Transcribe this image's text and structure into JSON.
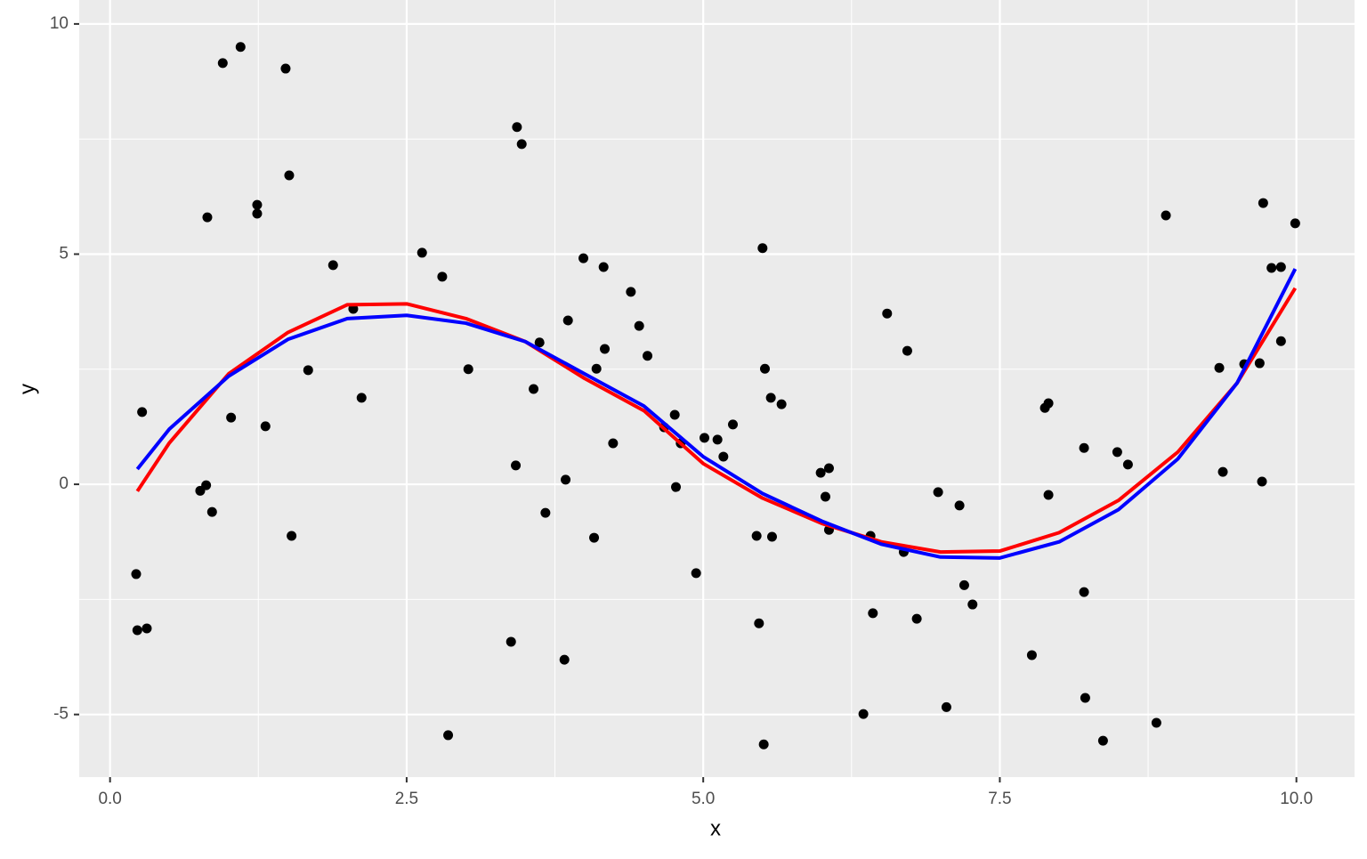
{
  "chart_data": {
    "type": "scatter",
    "xlabel": "x",
    "ylabel": "y",
    "xlim": [
      -0.26,
      10.49
    ],
    "ylim": [
      -6.36,
      10.52
    ],
    "xticks": [
      {
        "value": 0,
        "label": "0.0"
      },
      {
        "value": 2.5,
        "label": "2.5"
      },
      {
        "value": 5,
        "label": "5.0"
      },
      {
        "value": 7.5,
        "label": "7.5"
      },
      {
        "value": 10,
        "label": "10.0"
      }
    ],
    "yticks": [
      -5,
      0,
      5,
      10
    ],
    "grid": true,
    "points": {
      "color": "#000000",
      "x": [
        0.22,
        0.23,
        0.31,
        0.27,
        0.76,
        0.81,
        0.86,
        0.82,
        0.95,
        1.02,
        1.1,
        1.24,
        1.24,
        1.31,
        1.48,
        1.51,
        1.53,
        1.67,
        1.88,
        2.05,
        2.12,
        2.63,
        2.8,
        2.85,
        3.02,
        3.38,
        3.42,
        3.43,
        3.47,
        3.57,
        3.62,
        3.67,
        3.83,
        3.84,
        3.86,
        3.99,
        4.08,
        4.1,
        4.16,
        4.17,
        4.24,
        4.39,
        4.46,
        4.53,
        4.67,
        4.76,
        4.77,
        4.81,
        4.94,
        5.01,
        5.12,
        5.17,
        5.25,
        5.45,
        5.47,
        5.5,
        5.51,
        5.52,
        5.57,
        5.58,
        5.66,
        5.99,
        6.03,
        6.06,
        6.06,
        6.35,
        6.41,
        6.43,
        6.55,
        6.69,
        6.72,
        6.8,
        6.98,
        7.05,
        7.16,
        7.2,
        7.27,
        7.77,
        7.88,
        7.91,
        7.91,
        8.21,
        8.21,
        8.22,
        8.37,
        8.49,
        8.58,
        8.82,
        8.9,
        9.35,
        9.38,
        9.56,
        9.69,
        9.71,
        9.72,
        9.79,
        9.87,
        9.87,
        9.99
      ],
      "y": [
        -1.95,
        -3.17,
        -3.13,
        1.57,
        -0.14,
        -0.02,
        -0.6,
        5.8,
        9.15,
        1.45,
        9.5,
        6.07,
        5.88,
        1.26,
        9.03,
        6.71,
        -1.12,
        2.48,
        4.76,
        3.81,
        1.88,
        5.03,
        4.51,
        -5.45,
        2.5,
        -3.42,
        0.41,
        7.76,
        7.39,
        2.07,
        3.08,
        -0.62,
        -3.81,
        0.1,
        3.56,
        4.91,
        -1.16,
        2.51,
        4.72,
        2.94,
        0.89,
        4.18,
        3.44,
        2.79,
        1.24,
        1.51,
        -0.06,
        0.89,
        -1.93,
        1.01,
        0.97,
        0.6,
        1.3,
        -1.12,
        -3.02,
        5.13,
        -5.65,
        2.51,
        1.88,
        -1.14,
        1.74,
        0.25,
        -0.27,
        0.35,
        -0.99,
        -4.99,
        -1.12,
        -2.8,
        3.71,
        -1.47,
        2.9,
        -2.92,
        -0.17,
        -4.84,
        -0.46,
        -2.19,
        -2.61,
        -3.71,
        1.66,
        1.76,
        -0.23,
        0.79,
        -2.34,
        -4.64,
        -5.57,
        0.7,
        0.43,
        -5.18,
        5.84,
        2.53,
        0.27,
        2.61,
        2.63,
        0.06,
        6.11,
        4.7,
        4.72,
        3.11,
        5.67
      ]
    },
    "lines": [
      {
        "type": "line",
        "color": "#ff0000",
        "x": [
          0.23,
          0.5,
          1,
          1.5,
          2,
          2.5,
          3,
          3.5,
          4,
          4.5,
          5,
          5.5,
          6,
          6.5,
          7,
          7.5,
          8,
          8.5,
          9,
          9.5,
          9.99
        ],
        "values": [
          -0.15,
          0.9,
          2.4,
          3.3,
          3.9,
          3.92,
          3.6,
          3.1,
          2.3,
          1.6,
          0.45,
          -0.3,
          -0.85,
          -1.25,
          -1.47,
          -1.45,
          -1.05,
          -0.35,
          0.7,
          2.2,
          4.26
        ]
      },
      {
        "type": "line",
        "color": "#0000ff",
        "x": [
          0.23,
          0.5,
          1,
          1.5,
          2,
          2.5,
          3,
          3.5,
          4,
          4.5,
          5,
          5.5,
          6,
          6.5,
          7,
          7.5,
          8,
          8.5,
          9,
          9.5,
          9.99
        ],
        "values": [
          0.33,
          1.2,
          2.35,
          3.15,
          3.6,
          3.67,
          3.5,
          3.1,
          2.4,
          1.7,
          0.6,
          -0.2,
          -0.8,
          -1.3,
          -1.58,
          -1.6,
          -1.25,
          -0.55,
          0.55,
          2.2,
          4.68
        ]
      }
    ]
  }
}
